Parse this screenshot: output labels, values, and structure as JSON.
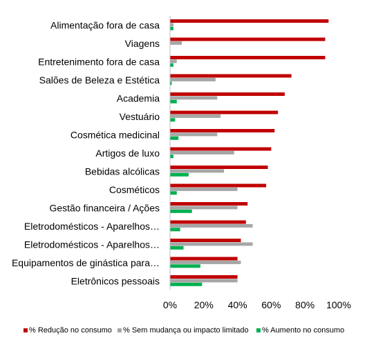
{
  "chart_data": {
    "type": "bar",
    "orientation": "horizontal",
    "categories": [
      "Alimentação fora de casa",
      "Viagens",
      "Entretenimento fora de casa",
      "Salões de Beleza e Estética",
      "Academia",
      "Vestuário",
      "Cosmética medicinal",
      "Artigos de luxo",
      "Bebidas alcólicas",
      "Cosméticos",
      "Gestão financeira / Ações",
      "Eletrodomésticos - Aparelhos…",
      "Eletrodomésticos - Aparelhos…",
      "Equipamentos de ginástica para…",
      "Eletrônicos pessoais"
    ],
    "series": [
      {
        "name": "% Redução no consumo",
        "color": "#C00000",
        "values": [
          94,
          92,
          92,
          72,
          68,
          64,
          62,
          60,
          58,
          57,
          46,
          45,
          42,
          40,
          40
        ]
      },
      {
        "name": "% Sem mudança ou impacto limitado",
        "color": "#A6A6A6",
        "values": [
          2,
          7,
          4,
          27,
          28,
          30,
          28,
          38,
          32,
          40,
          40,
          49,
          49,
          42,
          40
        ]
      },
      {
        "name": "% Aumento no consumo",
        "color": "#00B050",
        "values": [
          2,
          0,
          2,
          1,
          4,
          3,
          5,
          2,
          11,
          4,
          13,
          6,
          8,
          18,
          19
        ]
      }
    ],
    "xlim": [
      0,
      100
    ],
    "xticks": [
      "0%",
      "20%",
      "40%",
      "60%",
      "80%",
      "100%"
    ],
    "legend_position": "bottom",
    "grid": false
  }
}
